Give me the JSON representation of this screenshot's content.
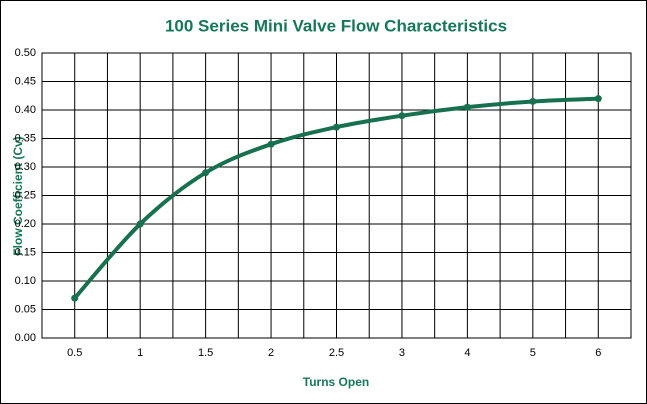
{
  "chart_data": {
    "type": "line",
    "title": "100 Series Mini Valve Flow Characteristics",
    "x_label": "Turns Open",
    "y_label": "Flow Coefficient (Cv)",
    "categories": [
      "0.5",
      "1",
      "1.5",
      "2",
      "2.5",
      "3",
      "4",
      "5",
      "6"
    ],
    "series": [
      {
        "name": "Cv",
        "color": "#17704f",
        "values": [
          0.07,
          0.2,
          0.29,
          0.34,
          0.37,
          0.39,
          0.405,
          0.415,
          0.42
        ]
      }
    ],
    "ylim": [
      0,
      0.5
    ],
    "yticks": [
      {
        "value": 0,
        "label": "0.00"
      },
      0.05,
      {
        "value": 0.1,
        "label": "0.10"
      },
      0.15,
      {
        "value": 0.2,
        "label": "0.20"
      },
      0.25,
      {
        "value": 0.3,
        "label": "0.30"
      },
      0.35,
      {
        "value": 0.4,
        "label": "0.40"
      },
      0.45,
      {
        "value": 0.5,
        "label": "0.50"
      }
    ],
    "grid": true
  }
}
